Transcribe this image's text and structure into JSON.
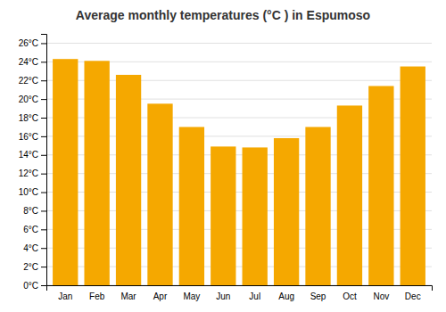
{
  "chart_data": {
    "type": "bar",
    "title": "Average monthly temperatures (°C ) in Espumoso",
    "categories": [
      "Jan",
      "Feb",
      "Mar",
      "Apr",
      "May",
      "Jun",
      "Jul",
      "Aug",
      "Sep",
      "Oct",
      "Nov",
      "Dec"
    ],
    "values": [
      24.3,
      24.1,
      22.6,
      19.5,
      17.0,
      14.9,
      14.8,
      15.8,
      17.0,
      19.3,
      21.4,
      23.5
    ],
    "color": "#F5A800",
    "ylim": [
      0,
      27
    ],
    "yticks": [
      {
        "value": 0,
        "label": "0°C"
      },
      {
        "value": 2,
        "label": "2°C"
      },
      {
        "value": 4,
        "label": "4°C"
      },
      {
        "value": 6,
        "label": "6°C"
      },
      {
        "value": 8,
        "label": "8°C"
      },
      {
        "value": 10,
        "label": "10°C"
      },
      {
        "value": 12,
        "label": "12°C"
      },
      {
        "value": 14,
        "label": "14°C"
      },
      {
        "value": 16,
        "label": "16°C"
      },
      {
        "value": 18,
        "label": "18°C"
      },
      {
        "value": 20,
        "label": "20°C"
      },
      {
        "value": 22,
        "label": "22°C"
      },
      {
        "value": 24,
        "label": "24°C"
      },
      {
        "value": 26,
        "label": "26°C"
      }
    ],
    "grid": true
  }
}
